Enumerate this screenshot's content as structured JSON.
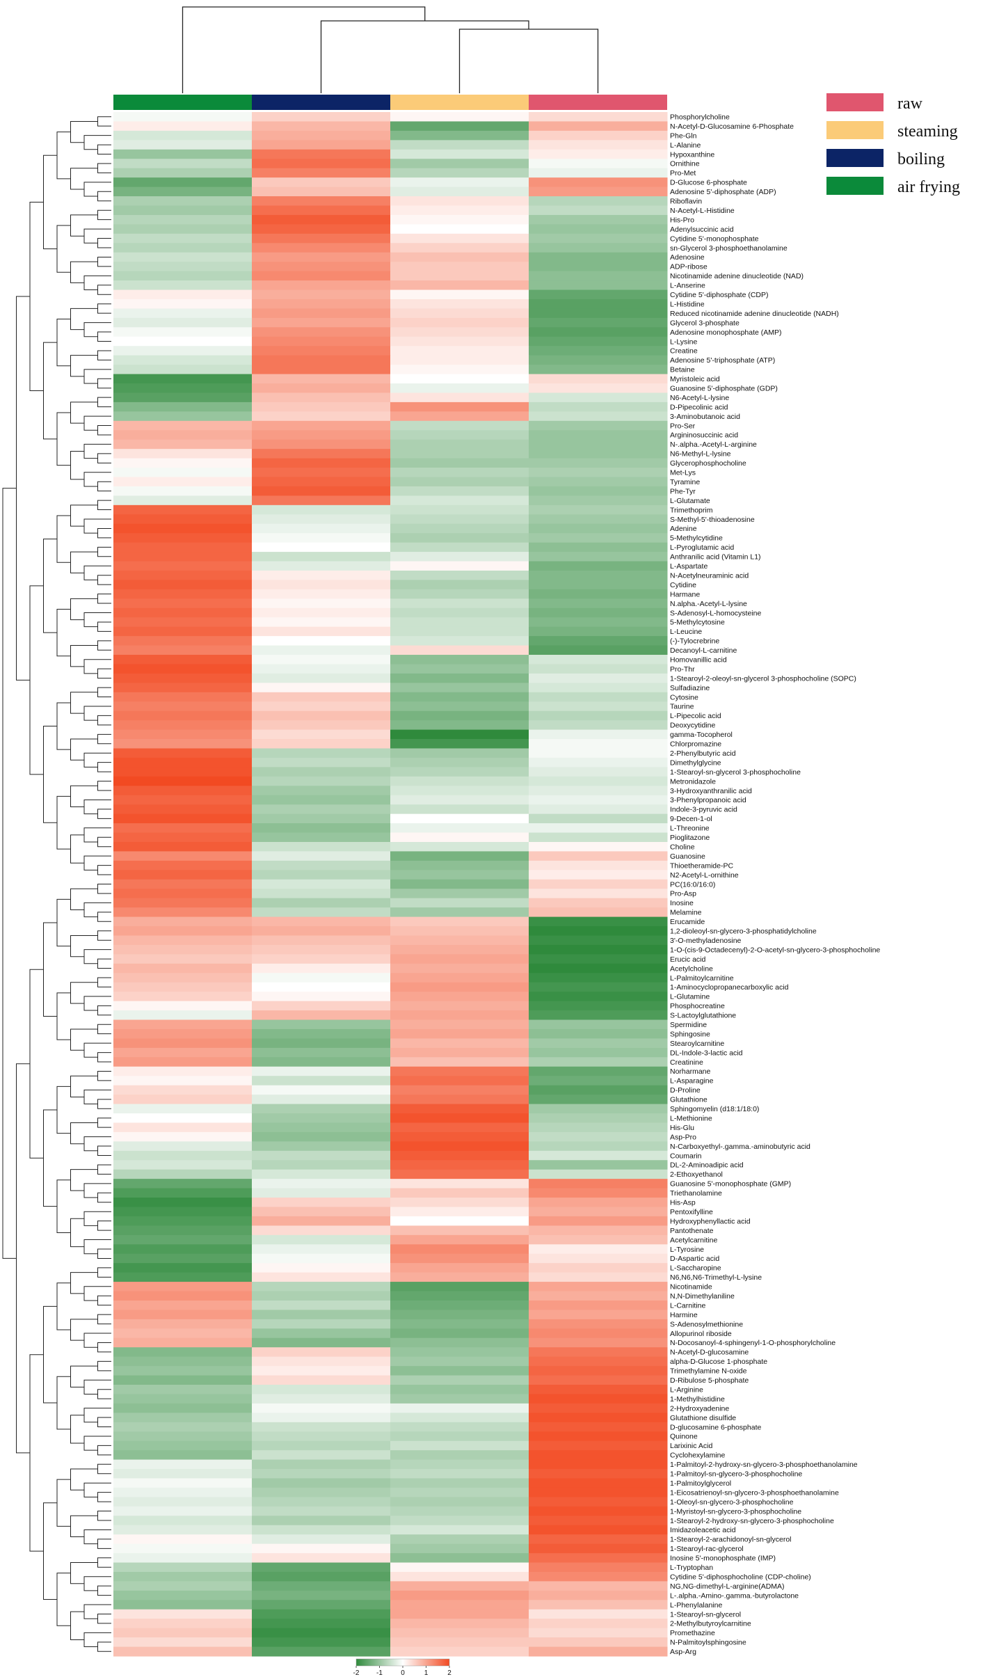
{
  "chart_data": {
    "type": "heatmap",
    "title": "",
    "columns": [
      "air frying",
      "boiling",
      "steaming",
      "raw"
    ],
    "column_colors": [
      "#0b8a3a",
      "#0c2466",
      "#fbcb78",
      "#e0566e"
    ],
    "legend": [
      {
        "label": "raw",
        "color": "#e0566e"
      },
      {
        "label": "steaming",
        "color": "#fbcb78"
      },
      {
        "label": "boiling",
        "color": "#0c2466"
      },
      {
        "label": "air frying",
        "color": "#0b8a3a"
      }
    ],
    "colorbar": {
      "range": [
        -2,
        2
      ],
      "ticks": [
        "-2",
        "-1",
        "0",
        "1",
        "2"
      ],
      "low_color": "#2f8a3c",
      "mid_color": "#ffffff",
      "high_color": "#f24a22"
    },
    "rows": [
      "Phosphorylcholine",
      "N-Acetyl-D-Glucosamine 6-Phosphate",
      "Phe-Gln",
      "L-Alanine",
      "Hypoxanthine",
      "Ornithine",
      "Pro-Met",
      "D-Glucose 6-phosphate",
      "Adenosine 5'-diphosphate (ADP)",
      "Riboflavin",
      "N-Acetyl-L-Histidine",
      "His-Pro",
      "Adenylsuccinic acid",
      "Cytidine 5'-monophosphate",
      "sn-Glycerol 3-phosphoethanolamine",
      "Adenosine",
      "ADP-ribose",
      "Nicotinamide adenine dinucleotide (NAD)",
      "L-Anserine",
      "Cytidine 5'-diphosphate (CDP)",
      "L-Histidine",
      "Reduced nicotinamide adenine dinucleotide (NADH)",
      "Glycerol 3-phosphate",
      "Adenosine monophosphate (AMP)",
      "L-Lysine",
      "Creatine",
      "Adenosine 5'-triphosphate (ATP)",
      "Betaine",
      "Myristoleic acid",
      "Guanosine 5'-diphosphate (GDP)",
      "N6-Acetyl-L-lysine",
      "D-Pipecolinic acid",
      "3-Aminobutanoic acid",
      "Pro-Ser",
      "Argininosuccinic acid",
      "N-.alpha.-Acetyl-L-arginine",
      "N6-Methyl-L-lysine",
      "Glycerophosphocholine",
      "Met-Lys",
      "Tyramine",
      "Phe-Tyr",
      "L-Glutamate",
      "Trimethoprim",
      "S-Methyl-5'-thioadenosine",
      "Adenine",
      "5-Methylcytidine",
      "L-Pyroglutamic acid",
      "Anthranilic acid (Vitamin L1)",
      "L-Aspartate",
      "N-Acetylneuraminic acid",
      "Cytidine",
      "Harmane",
      "N.alpha.-Acetyl-L-lysine",
      "S-Adenosyl-L-homocysteine",
      "5-Methylcytosine",
      "L-Leucine",
      "(-)-Tylocrebrine",
      "Decanoyl-L-carnitine",
      "Homovanillic acid",
      "Pro-Thr",
      "1-Stearoyl-2-oleoyl-sn-glycerol 3-phosphocholine (SOPC)",
      "Sulfadiazine",
      "Cytosine",
      "Taurine",
      "L-Pipecolic acid",
      "Deoxycytidine",
      "gamma-Tocopherol",
      "Chlorpromazine",
      "2-Phenylbutyric acid",
      "Dimethylglycine",
      "1-Stearoyl-sn-glycerol 3-phosphocholine",
      "Metronidazole",
      "3-Hydroxyanthranilic acid",
      "3-Phenylpropanoic acid",
      "Indole-3-pyruvic acid",
      "9-Decen-1-ol",
      "L-Threonine",
      "Pioglitazone",
      "Choline",
      "Guanosine",
      "Thioetheramide-PC",
      "N2-Acetyl-L-ornithine",
      "PC(16:0/16:0)",
      "Pro-Asp",
      "Inosine",
      "Melamine",
      "Erucamide",
      "1,2-dioleoyl-sn-glycero-3-phosphatidylcholine",
      "3'-O-methyladenosine",
      "1-O-(cis-9-Octadecenyl)-2-O-acetyl-sn-glycero-3-phosphocholine",
      "Erucic acid",
      "Acetylcholine",
      "L-Palmitoylcarnitine",
      "1-Aminocyclopropanecarboxylic acid",
      "L-Glutamine",
      "Phosphocreatine",
      "S-Lactoylglutathione",
      "Spermidine",
      "Sphingosine",
      "Stearoylcarnitine",
      "DL-Indole-3-lactic acid",
      "Creatinine",
      "Norharmane",
      "L-Asparagine",
      "D-Proline",
      "Glutathione",
      "Sphingomyelin (d18:1/18:0)",
      "L-Methionine",
      "His-Glu",
      "Asp-Pro",
      "N-Carboxyethyl-.gamma.-aminobutyric acid",
      "Coumarin",
      "DL-2-Aminoadipic acid",
      "2-Ethoxyethanol",
      "Guanosine 5'-monophosphate (GMP)",
      "Triethanolamine",
      "His-Asp",
      "Pentoxifylline",
      "Hydroxyphenyllactic acid",
      "Pantothenate",
      "Acetylcarnitine",
      "L-Tyrosine",
      "D-Aspartic acid",
      "L-Saccharopine",
      "N6,N6,N6-Trimethyl-L-lysine",
      "Nicotinamide",
      "N,N-Dimethylaniline",
      "L-Carnitine",
      "Harmine",
      "S-Adenosylmethionine",
      "Allopurinol riboside",
      "N-Docosanoyl-4-sphingenyl-1-O-phosphorylcholine",
      "N-Acetyl-D-glucosamine",
      "alpha-D-Glucose 1-phosphate",
      "Trimethylamine N-oxide",
      "D-Ribulose 5-phosphate",
      "L-Arginine",
      "1-Methylhistidine",
      "2-Hydroxyadenine",
      "Glutathione disulfide",
      "D-glucosamine 6-phosphate",
      "Quinone",
      "Larixinic Acid",
      "Cyclohexylamine",
      "1-Palmitoyl-2-hydroxy-sn-glycero-3-phosphoethanolamine",
      "1-Palmitoyl-sn-glycero-3-phosphocholine",
      "1-Palmitoylglycerol",
      "1-Eicosatrienoyl-sn-glycero-3-phosphoethanolamine",
      "1-Oleoyl-sn-glycero-3-phosphocholine",
      "1-Myristoyl-sn-glycero-3-phosphocholine",
      "1-Stearoyl-2-hydroxy-sn-glycero-3-phosphocholine",
      "Imidazoleacetic acid",
      "1-Stearoyl-2-arachidonoyl-sn-glycerol",
      "1-Stearoyl-rac-glycerol",
      "Inosine 5'-monophosphate (IMP)",
      "L-Tryptophan",
      "Cytidine 5'-diphosphocholine (CDP-choline)",
      "NG,NG-dimethyl-L-arginine(ADMA)",
      "L-.alpha.-Amino-.gamma.-butyrolactone",
      "L-Phenylalanine",
      "1-Stearoyl-sn-glycerol",
      "2-Methylbutyroylcarnitine",
      "Promethazine",
      "N-Palmitoylsphingosine",
      "Asp-Arg"
    ],
    "values": [
      [
        -0.1,
        0.5,
        0.1,
        0.4
      ],
      [
        0.2,
        0.8,
        -1.5,
        0.9
      ],
      [
        -0.4,
        0.9,
        -1.2,
        0.5
      ],
      [
        -0.3,
        1.0,
        -0.6,
        0.3
      ],
      [
        -1.0,
        1.5,
        -0.4,
        0.2
      ],
      [
        -0.6,
        1.6,
        -0.9,
        -0.1
      ],
      [
        -0.8,
        1.4,
        -0.7,
        -0.2
      ],
      [
        -1.5,
        0.6,
        -0.2,
        1.2
      ],
      [
        -1.3,
        0.7,
        -0.3,
        1.1
      ],
      [
        -0.8,
        1.4,
        0.3,
        -0.7
      ],
      [
        -0.9,
        1.6,
        0.2,
        -0.6
      ],
      [
        -0.7,
        1.8,
        0.1,
        -0.9
      ],
      [
        -0.8,
        1.7,
        0.0,
        -1.0
      ],
      [
        -0.6,
        1.5,
        0.3,
        -0.9
      ],
      [
        -0.7,
        1.3,
        0.5,
        -1.0
      ],
      [
        -0.5,
        1.1,
        0.7,
        -1.2
      ],
      [
        -0.6,
        1.2,
        0.6,
        -1.2
      ],
      [
        -0.7,
        1.3,
        0.6,
        -1.1
      ],
      [
        -0.5,
        1.0,
        0.8,
        -1.1
      ],
      [
        0.2,
        0.9,
        0.1,
        -1.5
      ],
      [
        0.1,
        1.0,
        0.3,
        -1.6
      ],
      [
        -0.2,
        1.1,
        0.4,
        -1.6
      ],
      [
        -0.3,
        1.0,
        0.5,
        -1.5
      ],
      [
        -0.1,
        1.2,
        0.4,
        -1.6
      ],
      [
        0.0,
        1.3,
        0.3,
        -1.5
      ],
      [
        -0.2,
        1.4,
        0.2,
        -1.4
      ],
      [
        -0.4,
        1.5,
        0.2,
        -1.3
      ],
      [
        -0.5,
        1.5,
        0.1,
        -1.2
      ],
      [
        -1.8,
        0.8,
        0.0,
        0.4
      ],
      [
        -1.7,
        0.9,
        -0.2,
        0.3
      ],
      [
        -1.6,
        0.7,
        0.3,
        -0.4
      ],
      [
        -1.2,
        0.6,
        1.2,
        -0.6
      ],
      [
        -1.0,
        0.5,
        1.0,
        -0.5
      ],
      [
        0.8,
        1.0,
        -0.6,
        -0.9
      ],
      [
        0.9,
        1.1,
        -0.7,
        -1.0
      ],
      [
        0.8,
        1.2,
        -0.8,
        -1.0
      ],
      [
        0.3,
        1.5,
        -0.8,
        -1.0
      ],
      [
        0.1,
        1.7,
        -0.9,
        -0.9
      ],
      [
        -0.1,
        1.6,
        -0.7,
        -0.8
      ],
      [
        0.2,
        1.7,
        -0.8,
        -0.9
      ],
      [
        -0.1,
        1.8,
        -0.6,
        -1.0
      ],
      [
        -0.3,
        1.5,
        -0.4,
        -0.9
      ],
      [
        1.7,
        -0.4,
        -0.5,
        -0.8
      ],
      [
        1.8,
        -0.3,
        -0.6,
        -0.9
      ],
      [
        1.9,
        -0.2,
        -0.7,
        -1.0
      ],
      [
        1.8,
        -0.1,
        -0.8,
        -0.9
      ],
      [
        1.7,
        0.0,
        -0.6,
        -1.1
      ],
      [
        1.7,
        -0.5,
        -0.3,
        -1.0
      ],
      [
        1.6,
        -0.3,
        0.1,
        -1.3
      ],
      [
        1.7,
        0.2,
        -0.6,
        -1.2
      ],
      [
        1.8,
        0.3,
        -0.8,
        -1.2
      ],
      [
        1.7,
        0.2,
        -0.7,
        -1.3
      ],
      [
        1.6,
        0.1,
        -0.5,
        -1.2
      ],
      [
        1.7,
        0.2,
        -0.6,
        -1.3
      ],
      [
        1.6,
        0.1,
        -0.5,
        -1.2
      ],
      [
        1.7,
        0.3,
        -0.5,
        -1.3
      ],
      [
        1.5,
        0.0,
        -0.4,
        -1.5
      ],
      [
        1.4,
        -0.2,
        0.4,
        -1.6
      ],
      [
        1.8,
        -0.1,
        -1.1,
        -0.4
      ],
      [
        1.9,
        -0.2,
        -1.0,
        -0.5
      ],
      [
        1.8,
        -0.3,
        -1.2,
        -0.3
      ],
      [
        1.7,
        0.1,
        -1.0,
        -0.4
      ],
      [
        1.5,
        0.6,
        -1.2,
        -0.6
      ],
      [
        1.4,
        0.5,
        -1.1,
        -0.5
      ],
      [
        1.5,
        0.7,
        -1.3,
        -0.7
      ],
      [
        1.4,
        0.6,
        -1.2,
        -0.6
      ],
      [
        1.3,
        0.4,
        -2.0,
        -0.2
      ],
      [
        1.2,
        0.5,
        -1.8,
        -0.1
      ],
      [
        1.8,
        -0.7,
        -0.9,
        -0.1
      ],
      [
        1.9,
        -0.6,
        -0.8,
        -0.2
      ],
      [
        1.9,
        -0.8,
        -0.7,
        -0.3
      ],
      [
        2.0,
        -0.7,
        -0.5,
        -0.4
      ],
      [
        1.8,
        -0.9,
        -0.4,
        -0.3
      ],
      [
        1.7,
        -1.0,
        -0.3,
        -0.2
      ],
      [
        1.8,
        -0.8,
        -0.5,
        -0.3
      ],
      [
        1.9,
        -0.9,
        0.0,
        -0.6
      ],
      [
        1.6,
        -1.1,
        -0.2,
        -0.2
      ],
      [
        1.7,
        -1.0,
        0.1,
        -0.5
      ],
      [
        1.8,
        -0.5,
        -0.4,
        0.1
      ],
      [
        1.3,
        -0.3,
        -1.3,
        0.6
      ],
      [
        1.6,
        -0.6,
        -1.1,
        0.3
      ],
      [
        1.7,
        -0.7,
        -1.0,
        0.2
      ],
      [
        1.5,
        -0.4,
        -1.2,
        0.5
      ],
      [
        1.6,
        -0.5,
        -0.9,
        0.3
      ],
      [
        1.5,
        -0.8,
        -0.6,
        0.6
      ],
      [
        1.3,
        -0.6,
        -0.9,
        0.7
      ],
      [
        0.9,
        0.8,
        0.6,
        -1.9
      ],
      [
        1.0,
        0.9,
        0.7,
        -2.0
      ],
      [
        0.8,
        0.7,
        0.8,
        -1.9
      ],
      [
        0.7,
        0.6,
        0.9,
        -2.0
      ],
      [
        0.6,
        0.5,
        1.0,
        -1.9
      ],
      [
        0.8,
        0.2,
        0.9,
        -2.0
      ],
      [
        0.7,
        -0.1,
        1.0,
        -1.9
      ],
      [
        0.6,
        0.0,
        1.1,
        -1.8
      ],
      [
        0.5,
        0.1,
        1.0,
        -1.9
      ],
      [
        0.1,
        0.5,
        0.9,
        -1.8
      ],
      [
        -0.2,
        0.8,
        1.0,
        -1.7
      ],
      [
        1.0,
        -1.0,
        0.9,
        -1.0
      ],
      [
        1.1,
        -1.2,
        1.0,
        -1.1
      ],
      [
        1.2,
        -1.3,
        0.8,
        -0.9
      ],
      [
        1.0,
        -1.1,
        0.9,
        -1.0
      ],
      [
        1.1,
        -1.2,
        0.7,
        -0.8
      ],
      [
        0.2,
        -0.2,
        1.5,
        -1.5
      ],
      [
        0.1,
        -0.5,
        1.6,
        -1.4
      ],
      [
        0.4,
        -0.1,
        1.4,
        -1.6
      ],
      [
        0.5,
        -0.3,
        1.5,
        -1.5
      ],
      [
        -0.2,
        -0.8,
        1.8,
        -0.9
      ],
      [
        0.0,
        -0.9,
        1.9,
        -0.8
      ],
      [
        0.3,
        -1.0,
        1.7,
        -0.7
      ],
      [
        0.1,
        -1.1,
        1.8,
        -0.6
      ],
      [
        -0.3,
        -0.9,
        1.9,
        -0.7
      ],
      [
        -0.5,
        -0.6,
        1.8,
        -0.4
      ],
      [
        -0.4,
        -0.7,
        1.7,
        -1.0
      ],
      [
        -0.7,
        -0.4,
        1.6,
        -0.5
      ],
      [
        -1.5,
        -0.2,
        0.3,
        1.4
      ],
      [
        -1.7,
        -0.3,
        0.6,
        1.3
      ],
      [
        -1.9,
        0.5,
        0.4,
        1.0
      ],
      [
        -1.8,
        0.7,
        0.2,
        0.9
      ],
      [
        -1.7,
        0.9,
        0.0,
        1.1
      ],
      [
        -1.6,
        0.4,
        0.7,
        0.8
      ],
      [
        -1.5,
        -0.4,
        1.0,
        0.7
      ],
      [
        -1.7,
        -0.2,
        1.3,
        0.2
      ],
      [
        -1.6,
        -0.1,
        1.2,
        0.3
      ],
      [
        -1.8,
        0.1,
        1.0,
        0.5
      ],
      [
        -1.7,
        0.3,
        0.9,
        0.4
      ],
      [
        1.1,
        -0.7,
        -1.6,
        1.0
      ],
      [
        1.2,
        -0.8,
        -1.5,
        0.9
      ],
      [
        1.0,
        -0.6,
        -1.4,
        1.1
      ],
      [
        1.1,
        -0.9,
        -1.3,
        1.0
      ],
      [
        0.9,
        -0.7,
        -1.2,
        1.2
      ],
      [
        0.8,
        -1.0,
        -1.3,
        1.3
      ],
      [
        0.9,
        -1.2,
        -1.1,
        1.2
      ],
      [
        -1.2,
        0.5,
        -1.0,
        1.5
      ],
      [
        -1.1,
        0.3,
        -0.9,
        1.6
      ],
      [
        -1.0,
        0.2,
        -1.1,
        1.7
      ],
      [
        -1.2,
        0.4,
        -0.8,
        1.6
      ],
      [
        -0.9,
        -0.4,
        -1.0,
        1.8
      ],
      [
        -1.0,
        -0.3,
        -0.9,
        1.9
      ],
      [
        -1.1,
        -0.1,
        -0.2,
        1.8
      ],
      [
        -0.9,
        -0.2,
        -0.4,
        1.9
      ],
      [
        -0.8,
        -0.5,
        -0.6,
        1.8
      ],
      [
        -0.9,
        -0.6,
        -0.7,
        1.9
      ],
      [
        -1.0,
        -0.7,
        -0.5,
        1.8
      ],
      [
        -1.1,
        -0.5,
        -0.8,
        1.9
      ],
      [
        -0.2,
        -0.8,
        -0.7,
        1.9
      ],
      [
        -0.3,
        -0.7,
        -0.6,
        1.8
      ],
      [
        -0.1,
        -0.9,
        -0.8,
        1.9
      ],
      [
        -0.2,
        -0.8,
        -0.7,
        1.9
      ],
      [
        -0.3,
        -0.7,
        -0.8,
        1.8
      ],
      [
        -0.2,
        -0.6,
        -0.7,
        1.9
      ],
      [
        -0.4,
        -0.8,
        -0.6,
        1.8
      ],
      [
        -0.3,
        -0.5,
        -0.4,
        1.9
      ],
      [
        0.1,
        -0.3,
        -0.8,
        1.7
      ],
      [
        -0.1,
        0.1,
        -0.9,
        1.8
      ],
      [
        -0.2,
        0.3,
        -1.1,
        1.6
      ],
      [
        -0.7,
        -1.5,
        0.1,
        1.4
      ],
      [
        -0.9,
        -1.6,
        0.3,
        1.3
      ],
      [
        -0.8,
        -1.4,
        0.9,
        0.8
      ],
      [
        -1.0,
        -1.3,
        1.1,
        0.9
      ],
      [
        -1.1,
        -1.5,
        1.0,
        0.7
      ],
      [
        0.3,
        -1.7,
        1.0,
        0.3
      ],
      [
        0.5,
        -1.8,
        0.8,
        0.5
      ],
      [
        0.6,
        -1.9,
        0.7,
        0.4
      ],
      [
        0.4,
        -1.8,
        0.6,
        0.6
      ],
      [
        0.7,
        -1.6,
        0.5,
        0.9
      ]
    ]
  }
}
